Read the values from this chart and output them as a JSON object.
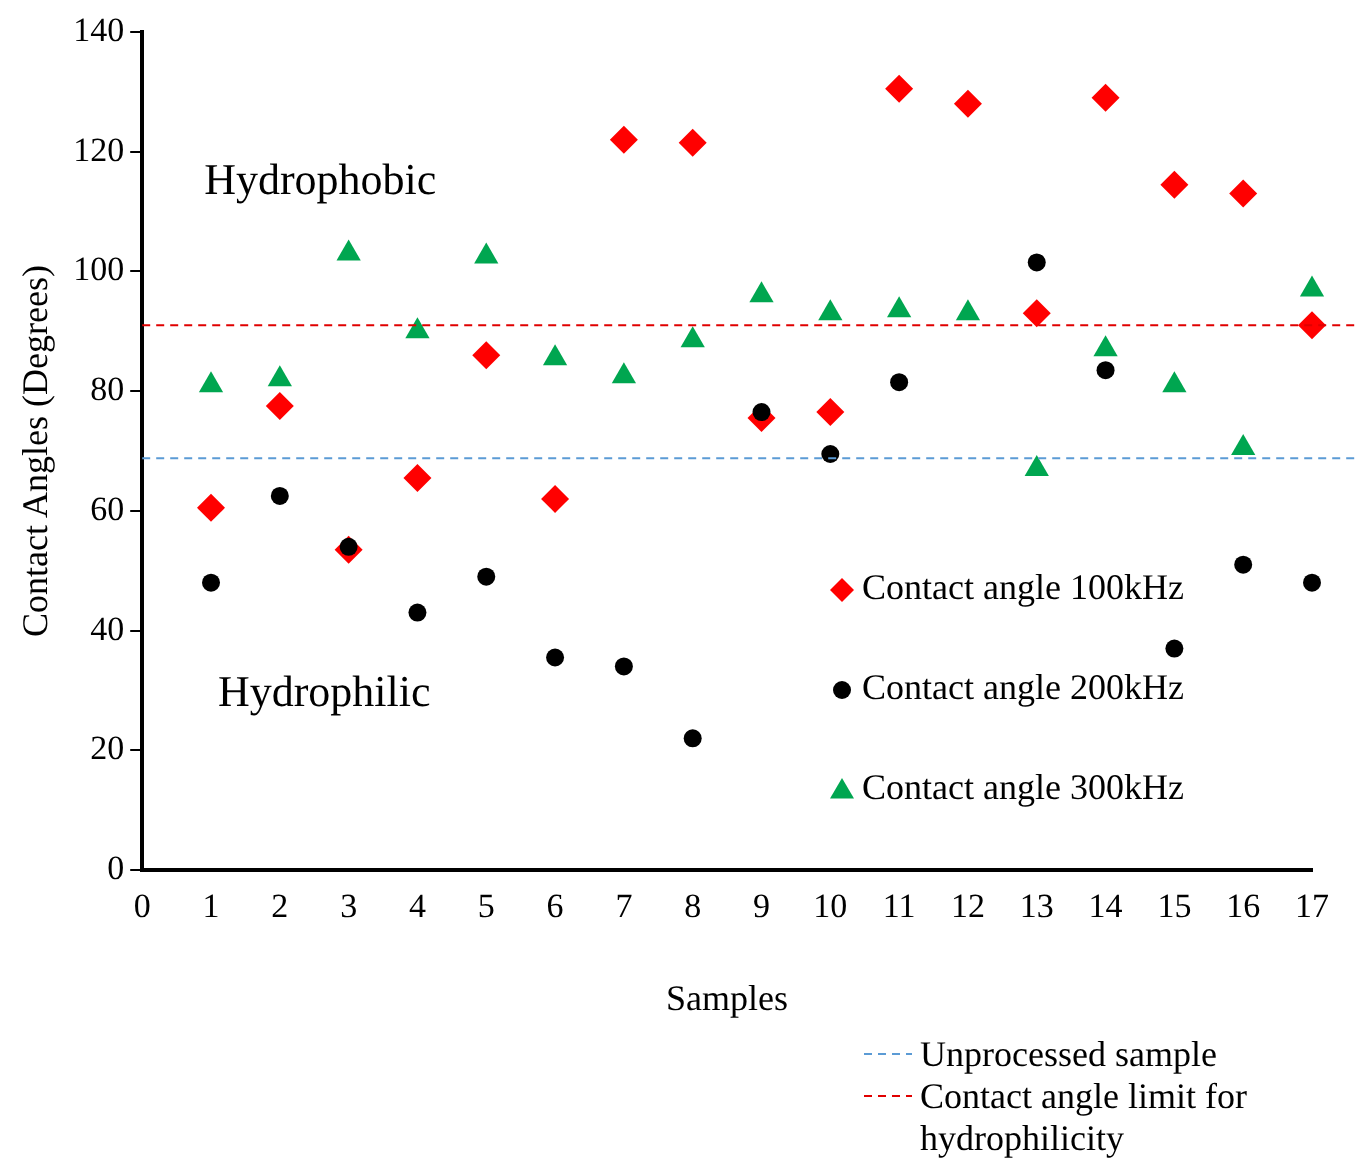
{
  "chart_data": {
    "type": "scatter",
    "xlabel": "Samples",
    "ylabel": "Contact Angles (Degrees)",
    "x": [
      1,
      2,
      3,
      4,
      5,
      6,
      7,
      8,
      9,
      10,
      11,
      12,
      13,
      14,
      15,
      16,
      17
    ],
    "xlim": [
      0,
      17
    ],
    "xticks": [
      0,
      1,
      2,
      3,
      4,
      5,
      6,
      7,
      8,
      9,
      10,
      11,
      12,
      13,
      14,
      15,
      16,
      17
    ],
    "ylim": [
      0,
      140
    ],
    "yticks": [
      0,
      20,
      40,
      60,
      80,
      100,
      120,
      140
    ],
    "grid": false,
    "legend": "bottom right",
    "series": [
      {
        "name": "Contact angle 100kHz",
        "color": "#ff0000",
        "marker": "diamond",
        "values": [
          60.5,
          77.5,
          53.5,
          65.5,
          86,
          62,
          122,
          121.5,
          75.5,
          76.5,
          130.5,
          128,
          93,
          129,
          114.5,
          113,
          91
        ]
      },
      {
        "name": "Contact angle 200kHz",
        "color": "#000000",
        "marker": "circle",
        "values": [
          48,
          62.5,
          54,
          43,
          49,
          35.5,
          34,
          22,
          76.5,
          69.5,
          81.5,
          null,
          101.5,
          83.5,
          37,
          51,
          48
        ]
      },
      {
        "name": "Contact angle 300kHz",
        "color": "#00a650",
        "marker": "triangle",
        "values": [
          81,
          82,
          103,
          90,
          102.5,
          85.5,
          82.5,
          88.5,
          96,
          93,
          93.5,
          93,
          67,
          87,
          81,
          70.5,
          97
        ]
      }
    ],
    "ref_lines": [
      {
        "axis": "y",
        "value": 68.8,
        "label": "Unprocessed sample",
        "color": "#5b9bd5",
        "line_style": "dashed"
      },
      {
        "axis": "y",
        "value": 91,
        "label": "Contact angle limit for hydrophilicity",
        "color": "#e00000",
        "line_style": "dashed"
      }
    ],
    "annotations": [
      "Hydrophobic",
      "Hydrophilic"
    ]
  }
}
